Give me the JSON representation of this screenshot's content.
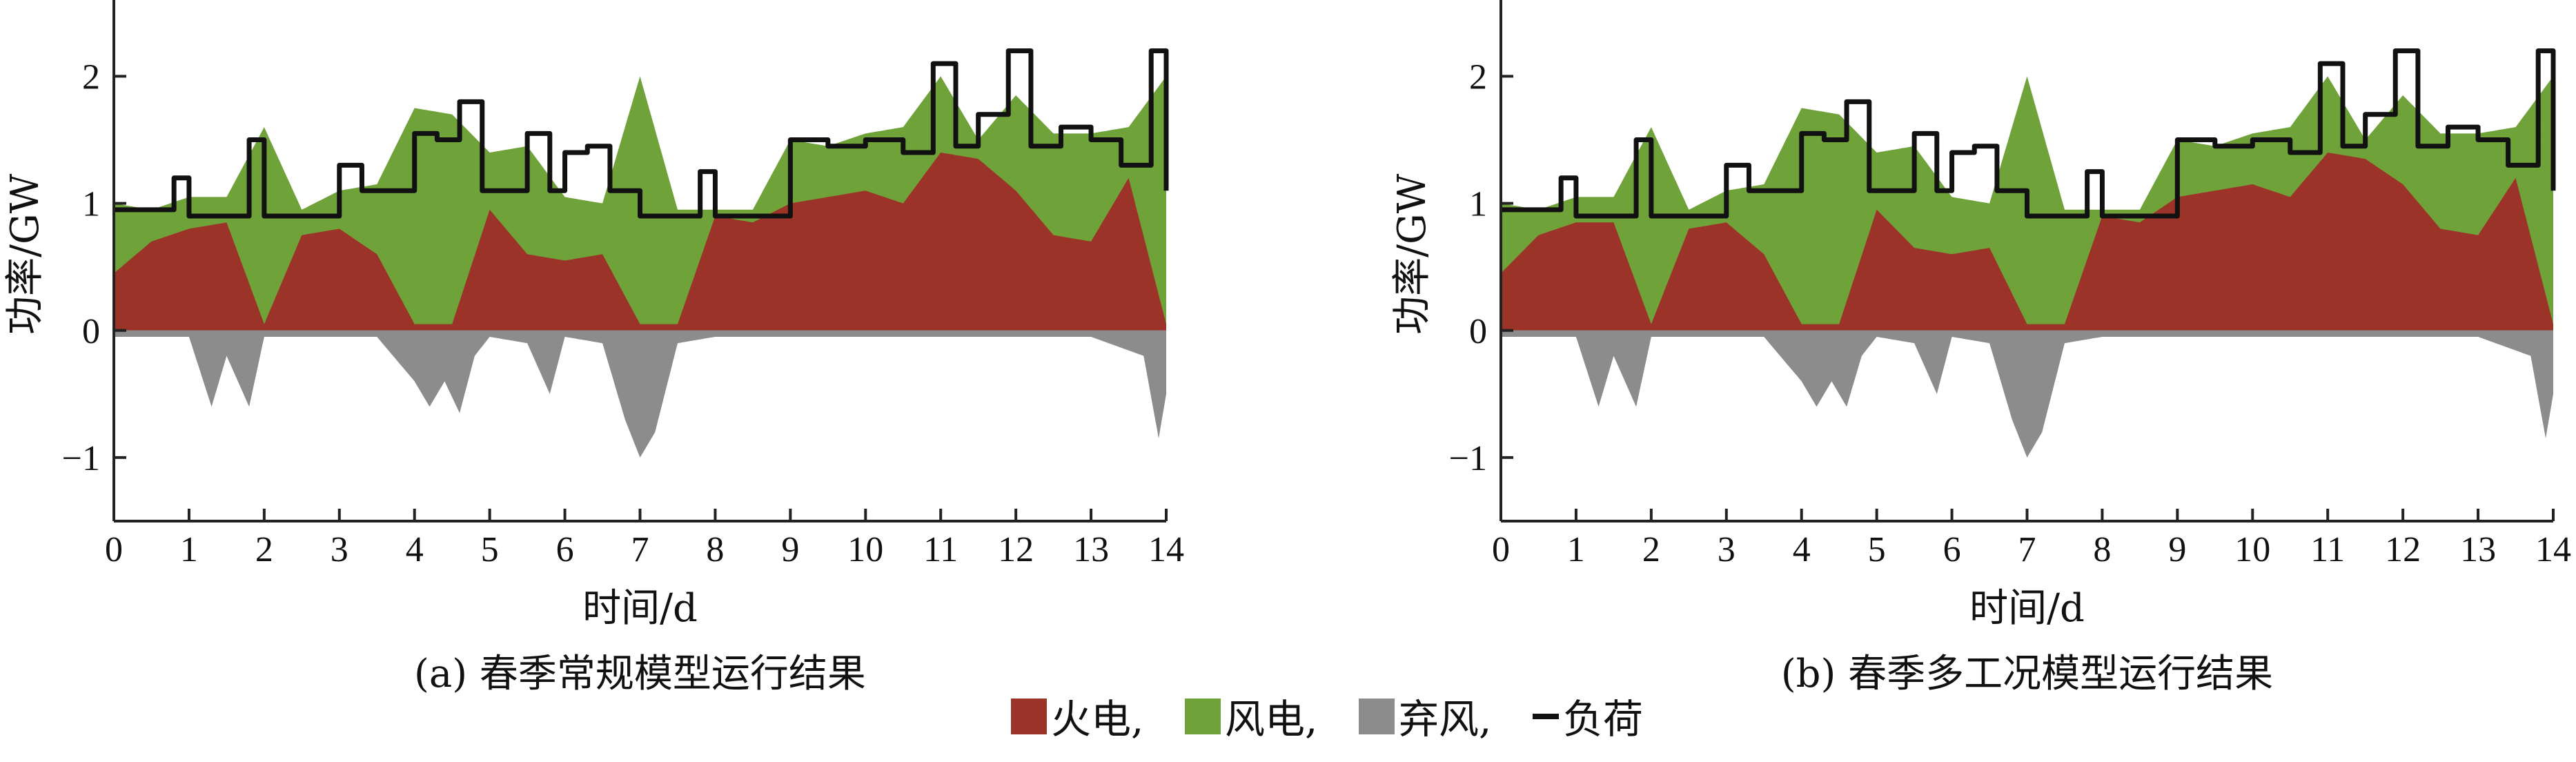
{
  "chart_data": [
    {
      "type": "area",
      "caption": "(a) 春季常规模型运行结果",
      "xlabel": "时间/d",
      "ylabel": "功率/GW",
      "xlim": [
        0,
        14
      ],
      "ylim": [
        -1.5,
        2.6
      ],
      "xticks": [
        0,
        1,
        2,
        3,
        4,
        5,
        6,
        7,
        8,
        9,
        10,
        11,
        12,
        13,
        14
      ],
      "yticks": [
        -1,
        0,
        1,
        2
      ],
      "grid": false,
      "series": [
        {
          "name": "火电",
          "color": "#9b3328",
          "type": "area",
          "x": [
            0,
            0.5,
            1.0,
            1.5,
            2.0,
            2.5,
            3.0,
            3.5,
            4.0,
            4.5,
            5.0,
            5.5,
            6.0,
            6.5,
            7.0,
            7.5,
            8.0,
            8.5,
            9.0,
            9.5,
            10.0,
            10.5,
            11.0,
            11.5,
            12.0,
            12.5,
            13.0,
            13.5,
            14.0
          ],
          "values": [
            0.45,
            0.7,
            0.8,
            0.85,
            0.05,
            0.75,
            0.8,
            0.6,
            0.05,
            0.05,
            0.95,
            0.6,
            0.55,
            0.6,
            0.05,
            0.05,
            0.9,
            0.85,
            1.0,
            1.05,
            1.1,
            1.0,
            1.4,
            1.35,
            1.1,
            0.75,
            0.7,
            1.2,
            0.05
          ]
        },
        {
          "name": "风电",
          "color": "#6fa33a",
          "type": "area",
          "x": [
            0,
            0.5,
            1.0,
            1.5,
            2.0,
            2.5,
            3.0,
            3.5,
            4.0,
            4.5,
            5.0,
            5.5,
            6.0,
            6.5,
            7.0,
            7.5,
            8.0,
            8.5,
            9.0,
            9.5,
            10.0,
            10.5,
            11.0,
            11.5,
            12.0,
            12.5,
            13.0,
            13.5,
            14.0
          ],
          "values": [
            1.0,
            0.95,
            1.05,
            1.05,
            1.6,
            0.95,
            1.1,
            1.15,
            1.75,
            1.7,
            1.4,
            1.45,
            1.05,
            1.0,
            2.0,
            0.95,
            0.95,
            0.95,
            1.5,
            1.45,
            1.55,
            1.6,
            2.0,
            1.5,
            1.85,
            1.55,
            1.55,
            1.6,
            2.0
          ]
        },
        {
          "name": "弃风",
          "color": "#8c8c8c",
          "type": "area",
          "x": [
            0,
            0.5,
            1.0,
            1.3,
            1.5,
            1.8,
            2.0,
            2.5,
            3.0,
            3.5,
            4.0,
            4.2,
            4.4,
            4.6,
            4.8,
            5.0,
            5.5,
            5.8,
            6.0,
            6.5,
            6.8,
            7.0,
            7.2,
            7.5,
            8.0,
            9.0,
            10.0,
            11.0,
            12.0,
            13.0,
            13.7,
            13.9,
            14.0
          ],
          "values": [
            -0.05,
            -0.05,
            -0.05,
            -0.6,
            -0.2,
            -0.6,
            -0.05,
            -0.05,
            -0.05,
            -0.05,
            -0.4,
            -0.6,
            -0.4,
            -0.65,
            -0.2,
            -0.05,
            -0.1,
            -0.5,
            -0.05,
            -0.1,
            -0.7,
            -1.0,
            -0.8,
            -0.1,
            -0.05,
            -0.05,
            -0.05,
            -0.05,
            -0.05,
            -0.05,
            -0.2,
            -0.85,
            -0.5
          ]
        },
        {
          "name": "负荷",
          "color": "#111111",
          "type": "line",
          "x": [
            0,
            0.5,
            0.8,
            1.0,
            1.5,
            1.8,
            2.0,
            2.5,
            3.0,
            3.3,
            3.6,
            4.0,
            4.3,
            4.6,
            4.9,
            5.2,
            5.5,
            5.8,
            6.0,
            6.3,
            6.6,
            7.0,
            7.5,
            7.8,
            8.0,
            8.5,
            9.0,
            9.5,
            10.0,
            10.5,
            10.9,
            11.2,
            11.5,
            11.9,
            12.2,
            12.6,
            13.0,
            13.4,
            13.8,
            14.0
          ],
          "values": [
            0.95,
            0.95,
            1.2,
            0.9,
            0.9,
            1.5,
            0.9,
            0.9,
            1.3,
            1.1,
            1.1,
            1.55,
            1.5,
            1.8,
            1.1,
            1.1,
            1.55,
            1.1,
            1.4,
            1.45,
            1.1,
            0.9,
            0.9,
            1.25,
            0.9,
            0.9,
            1.5,
            1.45,
            1.5,
            1.4,
            2.1,
            1.45,
            1.7,
            2.2,
            1.45,
            1.6,
            1.5,
            1.3,
            2.2,
            1.1
          ]
        }
      ]
    },
    {
      "type": "area",
      "caption": "(b) 春季多工况模型运行结果",
      "xlabel": "时间/d",
      "ylabel": "功率/GW",
      "xlim": [
        0,
        14
      ],
      "ylim": [
        -1.5,
        2.6
      ],
      "xticks": [
        0,
        1,
        2,
        3,
        4,
        5,
        6,
        7,
        8,
        9,
        10,
        11,
        12,
        13,
        14
      ],
      "yticks": [
        -1,
        0,
        1,
        2
      ],
      "grid": false,
      "series": [
        {
          "name": "火电",
          "color": "#9b3328",
          "type": "area",
          "x": [
            0,
            0.5,
            1.0,
            1.5,
            2.0,
            2.5,
            3.0,
            3.5,
            4.0,
            4.5,
            5.0,
            5.5,
            6.0,
            6.5,
            7.0,
            7.5,
            8.0,
            8.5,
            9.0,
            9.5,
            10.0,
            10.5,
            11.0,
            11.5,
            12.0,
            12.5,
            13.0,
            13.5,
            14.0
          ],
          "values": [
            0.45,
            0.75,
            0.85,
            0.85,
            0.05,
            0.8,
            0.85,
            0.6,
            0.05,
            0.05,
            0.95,
            0.65,
            0.6,
            0.65,
            0.05,
            0.05,
            0.9,
            0.85,
            1.05,
            1.1,
            1.15,
            1.05,
            1.4,
            1.35,
            1.15,
            0.8,
            0.75,
            1.2,
            0.05
          ]
        },
        {
          "name": "风电",
          "color": "#6fa33a",
          "type": "area",
          "x": [
            0,
            0.5,
            1.0,
            1.5,
            2.0,
            2.5,
            3.0,
            3.5,
            4.0,
            4.5,
            5.0,
            5.5,
            6.0,
            6.5,
            7.0,
            7.5,
            8.0,
            8.5,
            9.0,
            9.5,
            10.0,
            10.5,
            11.0,
            11.5,
            12.0,
            12.5,
            13.0,
            13.5,
            14.0
          ],
          "values": [
            1.0,
            0.95,
            1.05,
            1.05,
            1.6,
            0.95,
            1.1,
            1.15,
            1.75,
            1.7,
            1.4,
            1.45,
            1.05,
            1.0,
            2.0,
            0.95,
            0.95,
            0.95,
            1.5,
            1.45,
            1.55,
            1.6,
            2.0,
            1.5,
            1.85,
            1.55,
            1.55,
            1.6,
            2.0
          ]
        },
        {
          "name": "弃风",
          "color": "#8c8c8c",
          "type": "area",
          "x": [
            0,
            0.5,
            1.0,
            1.3,
            1.5,
            1.8,
            2.0,
            2.5,
            3.0,
            3.5,
            4.0,
            4.2,
            4.4,
            4.6,
            4.8,
            5.0,
            5.5,
            5.8,
            6.0,
            6.5,
            6.8,
            7.0,
            7.2,
            7.5,
            8.0,
            9.0,
            10.0,
            11.0,
            12.0,
            13.0,
            13.7,
            13.9,
            14.0
          ],
          "values": [
            -0.05,
            -0.05,
            -0.05,
            -0.6,
            -0.2,
            -0.6,
            -0.05,
            -0.05,
            -0.05,
            -0.05,
            -0.4,
            -0.6,
            -0.4,
            -0.6,
            -0.2,
            -0.05,
            -0.1,
            -0.5,
            -0.05,
            -0.1,
            -0.7,
            -1.0,
            -0.8,
            -0.1,
            -0.05,
            -0.05,
            -0.05,
            -0.05,
            -0.05,
            -0.05,
            -0.2,
            -0.85,
            -0.5
          ]
        },
        {
          "name": "负荷",
          "color": "#111111",
          "type": "line",
          "x": [
            0,
            0.5,
            0.8,
            1.0,
            1.5,
            1.8,
            2.0,
            2.5,
            3.0,
            3.3,
            3.6,
            4.0,
            4.3,
            4.6,
            4.9,
            5.2,
            5.5,
            5.8,
            6.0,
            6.3,
            6.6,
            7.0,
            7.5,
            7.8,
            8.0,
            8.5,
            9.0,
            9.5,
            10.0,
            10.5,
            10.9,
            11.2,
            11.5,
            11.9,
            12.2,
            12.6,
            13.0,
            13.4,
            13.8,
            14.0
          ],
          "values": [
            0.95,
            0.95,
            1.2,
            0.9,
            0.9,
            1.5,
            0.9,
            0.9,
            1.3,
            1.1,
            1.1,
            1.55,
            1.5,
            1.8,
            1.1,
            1.1,
            1.55,
            1.1,
            1.4,
            1.45,
            1.1,
            0.9,
            0.9,
            1.25,
            0.9,
            0.9,
            1.5,
            1.45,
            1.5,
            1.4,
            2.1,
            1.45,
            1.7,
            2.2,
            1.45,
            1.6,
            1.5,
            1.3,
            2.2,
            1.1
          ]
        }
      ]
    }
  ],
  "legend": {
    "placement": "bottom-center",
    "items": [
      {
        "label": "火电,",
        "color": "#9b3328",
        "kind": "box"
      },
      {
        "label": "风电,",
        "color": "#6fa33a",
        "kind": "box"
      },
      {
        "label": "弃风,",
        "color": "#8c8c8c",
        "kind": "box"
      },
      {
        "label": "负荷",
        "color": "#111111",
        "kind": "line"
      }
    ]
  }
}
